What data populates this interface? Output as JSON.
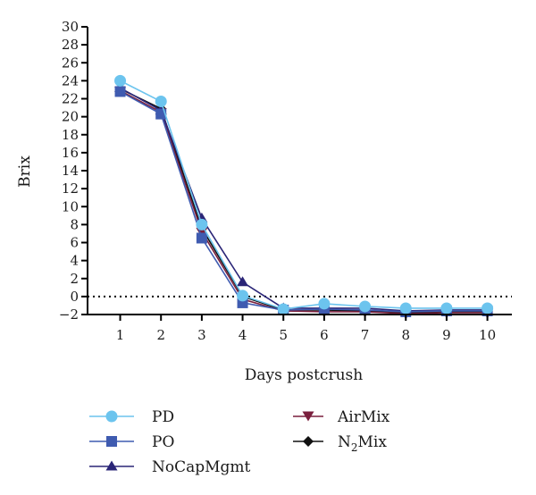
{
  "chart_data": {
    "type": "line",
    "xlabel": "Days postcrush",
    "ylabel": "Brix",
    "x": [
      1,
      2,
      3,
      4,
      5,
      6,
      7,
      8,
      9,
      10
    ],
    "xlim": [
      0.2,
      10.6
    ],
    "ylim": [
      -2,
      30
    ],
    "yticks": [
      -2,
      0,
      2,
      4,
      6,
      8,
      10,
      12,
      14,
      16,
      18,
      20,
      22,
      24,
      26,
      28,
      30
    ],
    "yticklabels": [
      "−2",
      "0",
      "2",
      "4",
      "6",
      "8",
      "10",
      "12",
      "14",
      "16",
      "18",
      "20",
      "22",
      "24",
      "26",
      "28",
      "30"
    ],
    "reference_line": {
      "y": 0,
      "style": "dotted"
    },
    "grid": false,
    "legend_position": "bottom",
    "series": [
      {
        "name": "PD",
        "marker": "circle",
        "color": "#6cc4ee",
        "values": [
          24.0,
          21.7,
          8.0,
          0.1,
          -1.4,
          -0.8,
          -1.1,
          -1.3,
          -1.3,
          -1.3
        ]
      },
      {
        "name": "PO",
        "marker": "square",
        "color": "#3f5bb0",
        "values": [
          22.8,
          20.3,
          6.5,
          -0.7,
          -1.5,
          -1.4,
          -1.5,
          -1.7,
          -1.6,
          -1.6
        ]
      },
      {
        "name": "NoCapMgmt",
        "marker": "triangle-up",
        "color": "#2a2577",
        "values": [
          23.2,
          20.7,
          8.7,
          1.6,
          -1.3,
          -1.3,
          -1.3,
          -1.6,
          -1.5,
          -1.5
        ]
      },
      {
        "name": "AirMix",
        "marker": "triangle-down",
        "color": "#7a1f3d",
        "values": [
          22.9,
          20.5,
          7.2,
          -0.3,
          -1.6,
          -1.7,
          -1.7,
          -1.9,
          -1.8,
          -1.8
        ]
      },
      {
        "name": "N2Mix",
        "marker": "diamond",
        "color": "#111111",
        "values": [
          23.1,
          20.9,
          7.6,
          0.0,
          -1.5,
          -1.5,
          -1.6,
          -1.8,
          -1.7,
          -1.7
        ]
      }
    ],
    "legend": {
      "PD": "PD",
      "PO": "PO",
      "NoCapMgmt": "NoCapMgmt",
      "AirMix": "AirMix",
      "N2Mix_main": "N",
      "N2Mix_sub": "2",
      "N2Mix_tail": "Mix"
    }
  }
}
